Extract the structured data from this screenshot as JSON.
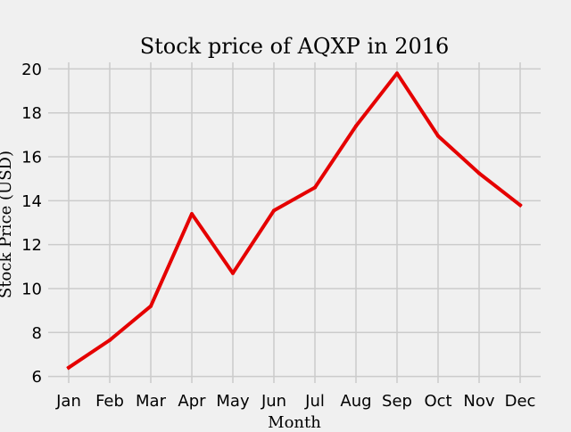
{
  "chart_data": {
    "type": "line",
    "title": "Stock price of AQXP in 2016",
    "xlabel": "Month",
    "ylabel": "Stock Price (USD)",
    "categories": [
      "Jan",
      "Feb",
      "Mar",
      "Apr",
      "May",
      "Jun",
      "Jul",
      "Aug",
      "Sep",
      "Oct",
      "Nov",
      "Dec"
    ],
    "series": [
      {
        "values": [
          6.4,
          7.65,
          9.2,
          13.4,
          10.7,
          13.55,
          14.6,
          17.4,
          19.8,
          16.95,
          15.25,
          13.8
        ],
        "color": "#e50000"
      }
    ],
    "ylim": [
      5.7,
      20.3
    ],
    "yticks": [
      6,
      8,
      10,
      12,
      14,
      16,
      18,
      20
    ],
    "grid": true,
    "legend": "none",
    "background": "#f0f0f0"
  }
}
